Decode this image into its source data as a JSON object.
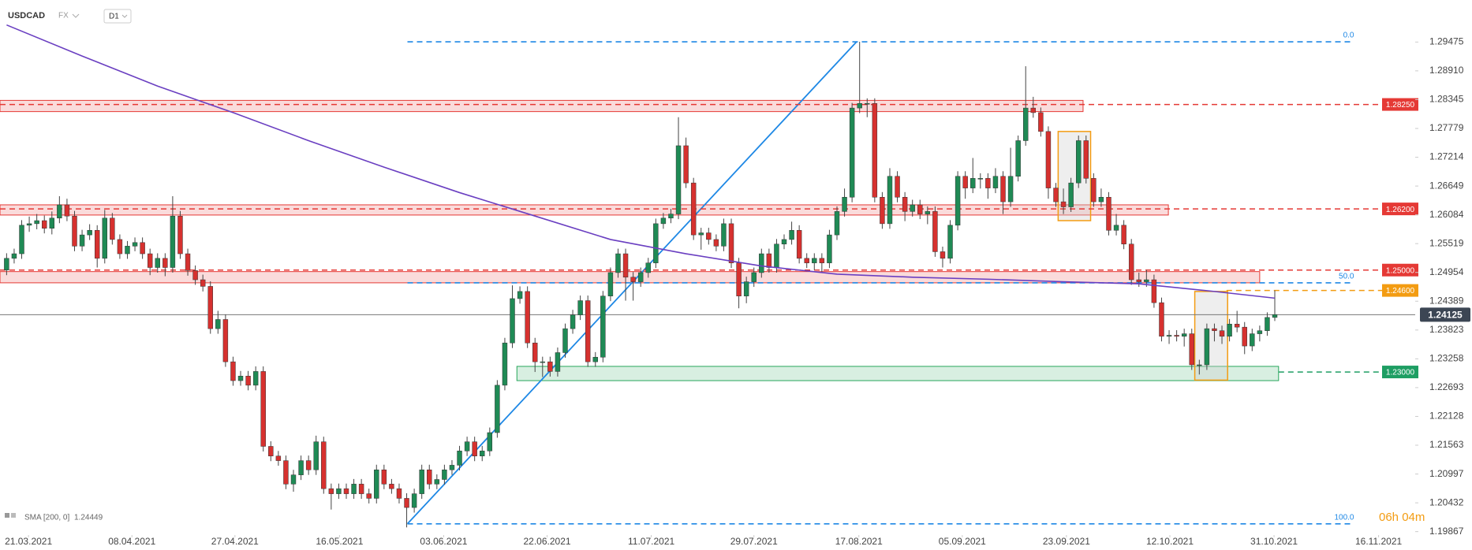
{
  "header": {
    "symbol": "USDCAD",
    "market": "FX",
    "timeframe": "D1"
  },
  "chart_data": {
    "type": "candlestick",
    "xlim": [
      -0.875,
      186.6
    ],
    "ylim": [
      1.198,
      1.303
    ],
    "xticks": [
      {
        "value": 2.9,
        "label": "21.03.2021"
      },
      {
        "value": 16.6,
        "label": "08.04.2021"
      },
      {
        "value": 30.25,
        "label": "27.04.2021"
      },
      {
        "value": 44.1,
        "label": "16.05.2021"
      },
      {
        "value": 57.9,
        "label": "03.06.2021"
      },
      {
        "value": 71.6,
        "label": "22.06.2021"
      },
      {
        "value": 85.4,
        "label": "11.07.2021"
      },
      {
        "value": 99,
        "label": "29.07.2021"
      },
      {
        "value": 112.9,
        "label": "17.08.2021"
      },
      {
        "value": 126.6,
        "label": "05.09.2021"
      },
      {
        "value": 140.4,
        "label": "23.09.2021"
      },
      {
        "value": 154.1,
        "label": "12.10.2021"
      },
      {
        "value": 167.9,
        "label": "31.10.2021"
      },
      {
        "value": 181.75,
        "label": "16.11.2021"
      }
    ],
    "yticks": [
      1.29475,
      {
        "value": 1.2891,
        "label": "1.28910"
      },
      1.28345,
      1.27779,
      1.27214,
      1.26649,
      1.26084,
      1.25519,
      1.24954,
      1.24389,
      1.23823,
      1.23258,
      1.22693,
      1.22128,
      1.21563,
      1.20997,
      1.20432,
      1.19867
    ],
    "candles": {
      "up_color": "#1f8a55",
      "down_color": "#d6312f",
      "wick_color": "#444444",
      "open": [
        1.25,
        1.2523,
        1.2532,
        1.2588,
        1.2591,
        1.2597,
        1.2582,
        1.2602,
        1.2628,
        1.2606,
        1.2547,
        1.2569,
        1.2578,
        1.2523,
        1.2602,
        1.256,
        1.2532,
        1.2547,
        1.2554,
        1.2532,
        1.2505,
        1.2523,
        1.2505,
        1.2606,
        1.2532,
        1.2499,
        1.2481,
        1.2468,
        1.2385,
        1.2403,
        1.232,
        1.2283,
        1.2292,
        1.2274,
        1.2301,
        1.2154,
        1.2135,
        1.2126,
        1.208,
        1.2098,
        1.2126,
        1.2108,
        1.2163,
        1.2071,
        1.2061,
        1.2071,
        1.2061,
        1.208,
        1.2061,
        1.2052,
        1.2108,
        1.208,
        1.2071,
        1.2052,
        1.2034,
        1.2061,
        1.2108,
        1.208,
        1.2089,
        1.2108,
        1.2117,
        1.2145,
        1.2163,
        1.2135,
        1.2145,
        1.2181,
        1.2274,
        1.2357,
        1.2444,
        1.2458,
        1.2357,
        1.232,
        1.232,
        1.2301,
        1.2338,
        1.2385,
        1.2412,
        1.244,
        1.232,
        1.2329,
        1.2449,
        1.2495,
        1.2532,
        1.2486,
        1.2477,
        1.2495,
        1.2514,
        1.2591,
        1.2602,
        1.261,
        1.2744,
        1.2671,
        1.2569,
        1.2573,
        1.256,
        1.2547,
        1.2591,
        1.2514,
        1.2449,
        1.2477,
        1.2495,
        1.2532,
        1.2505,
        1.2551,
        1.256,
        1.2578,
        1.2523,
        1.2514,
        1.2523,
        1.2514,
        1.2569,
        1.2615,
        1.2643,
        1.2818,
        1.2827,
        1.2827,
        1.2643,
        1.2591,
        1.2684,
        1.2643,
        1.2615,
        1.2628,
        1.261,
        1.2615,
        1.2536,
        1.2523,
        1.2588,
        1.2684,
        1.2661,
        1.268,
        1.268,
        1.2661,
        1.2684,
        1.2634,
        1.2684,
        1.2754,
        1.2818,
        1.2809,
        1.2772,
        1.2661,
        1.2634,
        1.2624,
        1.2671,
        1.2754,
        1.268,
        1.2634,
        1.2643,
        1.2578,
        1.2588,
        1.2551,
        1.2481,
        1.2477,
        1.2481,
        1.2436,
        1.237,
        1.2372,
        1.237,
        1.2375,
        1.2314,
        1.2314,
        1.2385,
        1.2381,
        1.237,
        1.2394,
        1.2388,
        1.2351,
        1.2375,
        1.2381,
        1.2407
      ],
      "high": [
        1.2533,
        1.2542,
        1.2598,
        1.2605,
        1.261,
        1.2607,
        1.2615,
        1.2645,
        1.264,
        1.2616,
        1.2579,
        1.259,
        1.2588,
        1.2618,
        1.2612,
        1.257,
        1.2557,
        1.2564,
        1.2564,
        1.2542,
        1.2533,
        1.2533,
        1.2645,
        1.2616,
        1.2542,
        1.2509,
        1.2491,
        1.2478,
        1.242,
        1.2413,
        1.233,
        1.2302,
        1.2302,
        1.2311,
        1.2311,
        1.2164,
        1.2145,
        1.2136,
        1.2108,
        1.2136,
        1.2136,
        1.2175,
        1.2173,
        1.2081,
        1.2081,
        1.2081,
        1.209,
        1.209,
        1.2071,
        1.2118,
        1.2118,
        1.209,
        1.2081,
        1.2062,
        1.2071,
        1.2118,
        1.2118,
        1.2099,
        1.2118,
        1.2127,
        1.2155,
        1.2173,
        1.2173,
        1.2155,
        1.2191,
        1.2284,
        1.2367,
        1.247,
        1.2468,
        1.2468,
        1.2367,
        1.233,
        1.233,
        1.2348,
        1.2395,
        1.2422,
        1.245,
        1.245,
        1.2339,
        1.2459,
        1.2505,
        1.2542,
        1.2542,
        1.2496,
        1.2505,
        1.2524,
        1.2601,
        1.2612,
        1.262,
        1.28,
        1.276,
        1.2681,
        1.2583,
        1.2583,
        1.257,
        1.2601,
        1.2601,
        1.2524,
        1.2487,
        1.2505,
        1.2542,
        1.2542,
        1.2561,
        1.257,
        1.2595,
        1.2588,
        1.2533,
        1.2533,
        1.2533,
        1.2579,
        1.2625,
        1.266,
        1.2828,
        1.2948,
        1.2837,
        1.2837,
        1.2653,
        1.27,
        1.2694,
        1.2653,
        1.2638,
        1.2638,
        1.2625,
        1.2625,
        1.2546,
        1.2598,
        1.2694,
        1.2694,
        1.272,
        1.269,
        1.269,
        1.27,
        1.2694,
        1.274,
        1.2764,
        1.29,
        1.284,
        1.2819,
        1.2782,
        1.2671,
        1.266,
        1.2681,
        1.2764,
        1.2764,
        1.269,
        1.266,
        1.2653,
        1.261,
        1.2598,
        1.2561,
        1.2495,
        1.25,
        1.2491,
        1.2446,
        1.2382,
        1.2382,
        1.2385,
        1.2385,
        1.2324,
        1.2395,
        1.2395,
        1.2391,
        1.2404,
        1.242,
        1.2398,
        1.2385,
        1.2391,
        1.2417,
        1.246
      ],
      "low": [
        1.249,
        1.2513,
        1.2522,
        1.2575,
        1.258,
        1.2572,
        1.257,
        1.2592,
        1.2596,
        1.2537,
        1.2537,
        1.2559,
        1.2505,
        1.2513,
        1.255,
        1.2522,
        1.2522,
        1.2537,
        1.2522,
        1.249,
        1.2495,
        1.2488,
        1.2495,
        1.2522,
        1.2489,
        1.2471,
        1.2458,
        1.2375,
        1.2375,
        1.231,
        1.2273,
        1.2273,
        1.2264,
        1.2264,
        1.2144,
        1.2125,
        1.2116,
        1.207,
        1.2065,
        1.2088,
        1.2098,
        1.2098,
        1.2061,
        1.203,
        1.2051,
        1.2051,
        1.2051,
        1.2051,
        1.2042,
        1.2042,
        1.207,
        1.2061,
        1.2042,
        1.1995,
        1.2024,
        1.2051,
        1.207,
        1.207,
        1.2079,
        1.2098,
        1.2107,
        1.2135,
        1.2125,
        1.2125,
        1.2135,
        1.2171,
        1.2264,
        1.2347,
        1.2434,
        1.2347,
        1.23,
        1.229,
        1.2291,
        1.2291,
        1.2328,
        1.2375,
        1.2402,
        1.231,
        1.231,
        1.2319,
        1.2439,
        1.2485,
        1.244,
        1.244,
        1.2467,
        1.2485,
        1.2504,
        1.2581,
        1.2592,
        1.26,
        1.2661,
        1.2559,
        1.254,
        1.255,
        1.2537,
        1.2537,
        1.2504,
        1.2425,
        1.2435,
        1.2467,
        1.2485,
        1.2495,
        1.2495,
        1.2541,
        1.255,
        1.2513,
        1.2504,
        1.25,
        1.2495,
        1.2504,
        1.2559,
        1.2605,
        1.2633,
        1.2808,
        1.28,
        1.2633,
        1.2581,
        1.2581,
        1.2633,
        1.2596,
        1.2605,
        1.26,
        1.259,
        1.2526,
        1.2505,
        1.2513,
        1.2578,
        1.264,
        1.2651,
        1.266,
        1.264,
        1.2651,
        1.261,
        1.2624,
        1.2674,
        1.2744,
        1.2799,
        1.2762,
        1.264,
        1.2624,
        1.261,
        1.2614,
        1.2661,
        1.267,
        1.2624,
        1.2624,
        1.2568,
        1.2568,
        1.2541,
        1.2471,
        1.2467,
        1.2467,
        1.2426,
        1.236,
        1.2355,
        1.236,
        1.235,
        1.2304,
        1.2295,
        1.2304,
        1.236,
        1.2355,
        1.236,
        1.2378,
        1.2335,
        1.2341,
        1.236,
        1.2371,
        1.24
      ],
      "close": [
        1.2523,
        1.2532,
        1.2588,
        1.2591,
        1.2597,
        1.2582,
        1.2602,
        1.2628,
        1.2606,
        1.2547,
        1.2569,
        1.2578,
        1.2523,
        1.2602,
        1.256,
        1.2532,
        1.2547,
        1.2554,
        1.2532,
        1.2505,
        1.2523,
        1.2505,
        1.2606,
        1.2532,
        1.2499,
        1.2481,
        1.2468,
        1.2385,
        1.2403,
        1.232,
        1.2283,
        1.2292,
        1.2274,
        1.2301,
        1.2154,
        1.2135,
        1.2126,
        1.208,
        1.2098,
        1.2126,
        1.2108,
        1.2163,
        1.2071,
        1.2061,
        1.2071,
        1.2061,
        1.208,
        1.2061,
        1.2052,
        1.2108,
        1.208,
        1.2071,
        1.2052,
        1.2034,
        1.2061,
        1.2108,
        1.208,
        1.2089,
        1.2108,
        1.2117,
        1.2145,
        1.2163,
        1.2135,
        1.2145,
        1.2181,
        1.2274,
        1.2357,
        1.2444,
        1.2458,
        1.2357,
        1.232,
        1.232,
        1.2301,
        1.2338,
        1.2385,
        1.2412,
        1.244,
        1.232,
        1.2329,
        1.2449,
        1.2495,
        1.2532,
        1.2486,
        1.2477,
        1.2495,
        1.2514,
        1.2591,
        1.2602,
        1.261,
        1.2744,
        1.2671,
        1.2569,
        1.2573,
        1.256,
        1.2547,
        1.2591,
        1.2514,
        1.2449,
        1.2477,
        1.2495,
        1.2532,
        1.2505,
        1.2551,
        1.256,
        1.2578,
        1.2523,
        1.2514,
        1.2523,
        1.2514,
        1.2569,
        1.2615,
        1.2643,
        1.2818,
        1.2827,
        1.2827,
        1.2643,
        1.2591,
        1.2684,
        1.2643,
        1.2615,
        1.2628,
        1.261,
        1.2615,
        1.2536,
        1.2523,
        1.2588,
        1.2684,
        1.2661,
        1.268,
        1.268,
        1.2661,
        1.2684,
        1.2634,
        1.2684,
        1.2754,
        1.2818,
        1.2809,
        1.2772,
        1.2661,
        1.2634,
        1.2624,
        1.2671,
        1.2754,
        1.268,
        1.2634,
        1.2643,
        1.2578,
        1.2588,
        1.2551,
        1.2481,
        1.2477,
        1.2481,
        1.2436,
        1.237,
        1.2372,
        1.237,
        1.2375,
        1.2314,
        1.2314,
        1.2385,
        1.2381,
        1.237,
        1.2394,
        1.2388,
        1.2351,
        1.2375,
        1.2381,
        1.2407,
        1.24125
      ]
    },
    "sma": {
      "name": "SMA [200, 0]",
      "color": "#6a3fc1",
      "x": [
        0,
        10,
        20,
        30,
        40,
        50,
        60,
        70,
        80,
        90,
        100,
        110,
        120,
        130,
        140,
        150,
        160,
        168
      ],
      "values": [
        1.2981,
        1.292,
        1.2861,
        1.2809,
        1.2754,
        1.2702,
        1.2652,
        1.2606,
        1.256,
        1.2532,
        1.2508,
        1.2492,
        1.2486,
        1.2482,
        1.2477,
        1.2473,
        1.2458,
        1.24449
      ]
    },
    "zones": [
      {
        "range": [
          1.2811,
          1.2833
        ],
        "x": [
          -0.875,
          142.6
        ],
        "color": "#e53935"
      },
      {
        "range": [
          1.2608,
          1.2628
        ],
        "x": [
          -0.875,
          153.9
        ],
        "color": "#e53935"
      },
      {
        "range": [
          1.2475,
          1.2497
        ],
        "x": [
          -0.875,
          166
        ],
        "color": "#e53935"
      },
      {
        "range": [
          1.2283,
          1.2311
        ],
        "x": [
          67.6,
          168.5
        ],
        "color": "#26a65b"
      }
    ],
    "levels": [
      {
        "value": 1.2825,
        "label": "1.28250",
        "x_start": -0.875,
        "color": "#e53935"
      },
      {
        "value": 1.262,
        "label": "1.26200",
        "x_start": -0.875,
        "color": "#e53935"
      },
      {
        "value": 1.25,
        "label": "1.25000",
        "x_start": -0.875,
        "color": "#e53935"
      },
      {
        "value": 1.246,
        "label": "1.24600",
        "x_start": 161.6,
        "color": "#f39c12"
      },
      {
        "value": 1.23,
        "label": "1.23000",
        "x_start": 168.5,
        "color": "#1e9e63"
      }
    ],
    "fibonacci": {
      "color": "#1e88e5",
      "x": [
        53.1,
        178.5
      ],
      "levels": [
        {
          "value": 1.2948,
          "label": "0.0"
        },
        {
          "value": 1.2475,
          "label": "50.0"
        },
        {
          "value": 1.2002,
          "label": "100.0"
        }
      ],
      "trend_line": {
        "x": [
          53.1,
          112.6
        ],
        "y": [
          1.2002,
          1.2948
        ]
      }
    },
    "boxes": {
      "color": "#f39c12",
      "items": [
        {
          "x": [
            139.3,
            143.6
          ],
          "y": [
            1.2597,
            1.2772
          ]
        },
        {
          "x": [
            157.4,
            161.75
          ],
          "y": [
            1.2284,
            1.2458
          ]
        }
      ]
    },
    "last_price": {
      "value": 1.24125,
      "label": "1.24125",
      "color": "#3c4654"
    },
    "countdown": "06h 04m"
  }
}
